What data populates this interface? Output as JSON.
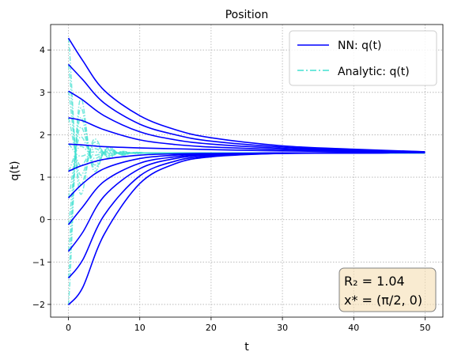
{
  "chart_data": {
    "type": "line",
    "title": "Position",
    "xlabel": "t",
    "ylabel": "q(t)",
    "xlim": [
      -2.5,
      52.5
    ],
    "ylim": [
      -2.3,
      4.6
    ],
    "xticks": [
      0,
      10,
      20,
      30,
      40,
      50
    ],
    "xtick_labels": [
      "0",
      "10",
      "20",
      "30",
      "40",
      "50"
    ],
    "yticks": [
      -2,
      -1,
      0,
      1,
      2,
      3,
      4
    ],
    "ytick_labels": [
      "−2",
      "−1",
      "0",
      "1",
      "2",
      "3",
      "4"
    ],
    "grid": true,
    "legend": {
      "position": "top-right",
      "entries": [
        {
          "label": "NN: q(t)",
          "color": "#0000ff",
          "style": "solid"
        },
        {
          "label": "Analytic: q(t)",
          "color": "#40e0d0",
          "style": "dashdot"
        }
      ]
    },
    "annotation": {
      "position": "bottom-right",
      "lines": [
        "R₂ = 1.04",
        "x* = (π/2, 0)"
      ],
      "box_face": "#f5deb3",
      "box_edge": "#808080"
    },
    "equilibrium": 1.5708,
    "t_end": 50,
    "initial_conditions": [
      4.28,
      3.66,
      3.03,
      2.4,
      1.78,
      1.14,
      0.51,
      -0.12,
      -0.75,
      -1.38,
      -2.01
    ],
    "series": [
      {
        "name": "NN: q(t)",
        "color": "#0000ff",
        "style": "solid",
        "curves": [
          {
            "q0": 4.28,
            "points": [
              [
                0,
                4.28
              ],
              [
                2,
                3.75
              ],
              [
                5,
                3.05
              ],
              [
                10,
                2.45
              ],
              [
                15,
                2.12
              ],
              [
                20,
                1.93
              ],
              [
                30,
                1.74
              ],
              [
                40,
                1.66
              ],
              [
                50,
                1.6
              ]
            ]
          },
          {
            "q0": 3.66,
            "points": [
              [
                0,
                3.66
              ],
              [
                2,
                3.3
              ],
              [
                5,
                2.75
              ],
              [
                10,
                2.25
              ],
              [
                15,
                2.0
              ],
              [
                20,
                1.85
              ],
              [
                30,
                1.71
              ],
              [
                40,
                1.64
              ],
              [
                50,
                1.6
              ]
            ]
          },
          {
            "q0": 3.03,
            "points": [
              [
                0,
                3.03
              ],
              [
                2,
                2.82
              ],
              [
                5,
                2.45
              ],
              [
                10,
                2.07
              ],
              [
                15,
                1.88
              ],
              [
                20,
                1.78
              ],
              [
                30,
                1.68
              ],
              [
                40,
                1.63
              ],
              [
                50,
                1.59
              ]
            ]
          },
          {
            "q0": 2.4,
            "points": [
              [
                0,
                2.4
              ],
              [
                2,
                2.33
              ],
              [
                5,
                2.12
              ],
              [
                10,
                1.88
              ],
              [
                15,
                1.77
              ],
              [
                20,
                1.71
              ],
              [
                30,
                1.65
              ],
              [
                40,
                1.61
              ],
              [
                50,
                1.59
              ]
            ]
          },
          {
            "q0": 1.78,
            "points": [
              [
                0,
                1.78
              ],
              [
                2,
                1.76
              ],
              [
                5,
                1.72
              ],
              [
                10,
                1.69
              ],
              [
                15,
                1.67
              ],
              [
                20,
                1.65
              ],
              [
                30,
                1.62
              ],
              [
                40,
                1.6
              ],
              [
                50,
                1.58
              ]
            ]
          },
          {
            "q0": 1.14,
            "points": [
              [
                0,
                1.14
              ],
              [
                2,
                1.28
              ],
              [
                5,
                1.42
              ],
              [
                10,
                1.52
              ],
              [
                15,
                1.55
              ],
              [
                20,
                1.56
              ],
              [
                30,
                1.57
              ],
              [
                40,
                1.57
              ],
              [
                50,
                1.58
              ]
            ]
          },
          {
            "q0": 0.51,
            "points": [
              [
                0,
                0.51
              ],
              [
                2,
                0.85
              ],
              [
                5,
                1.2
              ],
              [
                10,
                1.44
              ],
              [
                15,
                1.52
              ],
              [
                20,
                1.55
              ],
              [
                30,
                1.57
              ],
              [
                40,
                1.57
              ],
              [
                50,
                1.58
              ]
            ]
          },
          {
            "q0": -0.12,
            "points": [
              [
                0,
                -0.12
              ],
              [
                2,
                0.3
              ],
              [
                5,
                0.9
              ],
              [
                10,
                1.33
              ],
              [
                15,
                1.48
              ],
              [
                20,
                1.54
              ],
              [
                30,
                1.57
              ],
              [
                40,
                1.57
              ],
              [
                50,
                1.58
              ]
            ]
          },
          {
            "q0": -0.75,
            "points": [
              [
                0,
                -0.75
              ],
              [
                2,
                -0.3
              ],
              [
                5,
                0.55
              ],
              [
                10,
                1.2
              ],
              [
                15,
                1.44
              ],
              [
                20,
                1.52
              ],
              [
                30,
                1.56
              ],
              [
                40,
                1.57
              ],
              [
                50,
                1.58
              ]
            ]
          },
          {
            "q0": -1.38,
            "points": [
              [
                0,
                -1.38
              ],
              [
                2,
                -0.95
              ],
              [
                5,
                0.1
              ],
              [
                10,
                1.03
              ],
              [
                15,
                1.38
              ],
              [
                20,
                1.5
              ],
              [
                30,
                1.56
              ],
              [
                40,
                1.57
              ],
              [
                50,
                1.58
              ]
            ]
          },
          {
            "q0": -2.01,
            "points": [
              [
                0,
                -2.01
              ],
              [
                2,
                -1.6
              ],
              [
                5,
                -0.35
              ],
              [
                10,
                0.85
              ],
              [
                15,
                1.32
              ],
              [
                20,
                1.48
              ],
              [
                30,
                1.56
              ],
              [
                40,
                1.57
              ],
              [
                50,
                1.58
              ]
            ]
          }
        ]
      },
      {
        "name": "Analytic: q(t)",
        "color": "#40e0d0",
        "style": "dashdot",
        "note": "damped oscillation about equilibrium, amplitude decays to ~0 by t≈8",
        "damping": 0.55,
        "frequency": 1.6
      }
    ]
  }
}
